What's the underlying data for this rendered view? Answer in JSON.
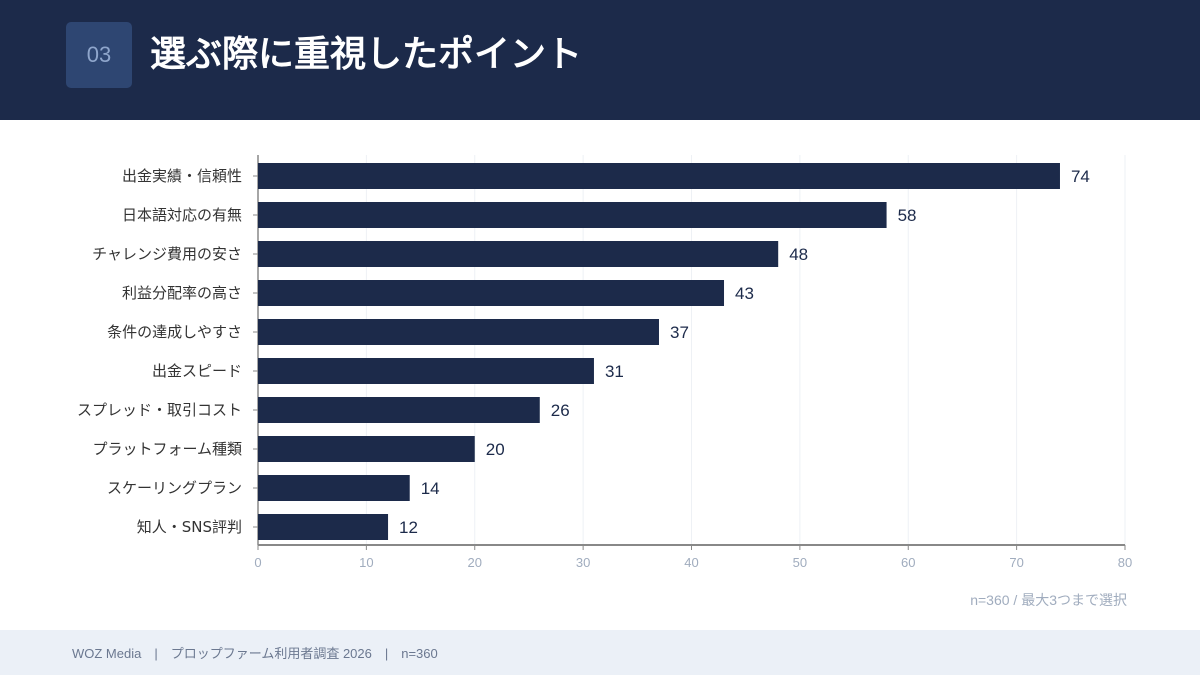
{
  "header": {
    "number": "03",
    "title": "選ぶ際に重視したポイント"
  },
  "chart_data": {
    "type": "bar",
    "orientation": "horizontal",
    "categories": [
      "出金実績・信頼性",
      "日本語対応の有無",
      "チャレンジ費用の安さ",
      "利益分配率の高さ",
      "条件の達成しやすさ",
      "出金スピード",
      "スプレッド・取引コスト",
      "プラットフォーム種類",
      "スケーリングプラン",
      "知人・SNS評判"
    ],
    "values": [
      74,
      58,
      48,
      43,
      37,
      31,
      26,
      20,
      14,
      12
    ],
    "xlim": [
      0,
      80
    ],
    "xticks": [
      0,
      10,
      20,
      30,
      40,
      50,
      60,
      70,
      80
    ],
    "grid": true,
    "bar_color": "#1c2a4a",
    "title": "選ぶ際に重視したポイント",
    "xlabel": "",
    "ylabel": ""
  },
  "note": "n=360 / 最大3つまで選択",
  "footer": {
    "text": "WOZ Media　|　プロップファーム利用者調査 2026　|　n=360"
  }
}
